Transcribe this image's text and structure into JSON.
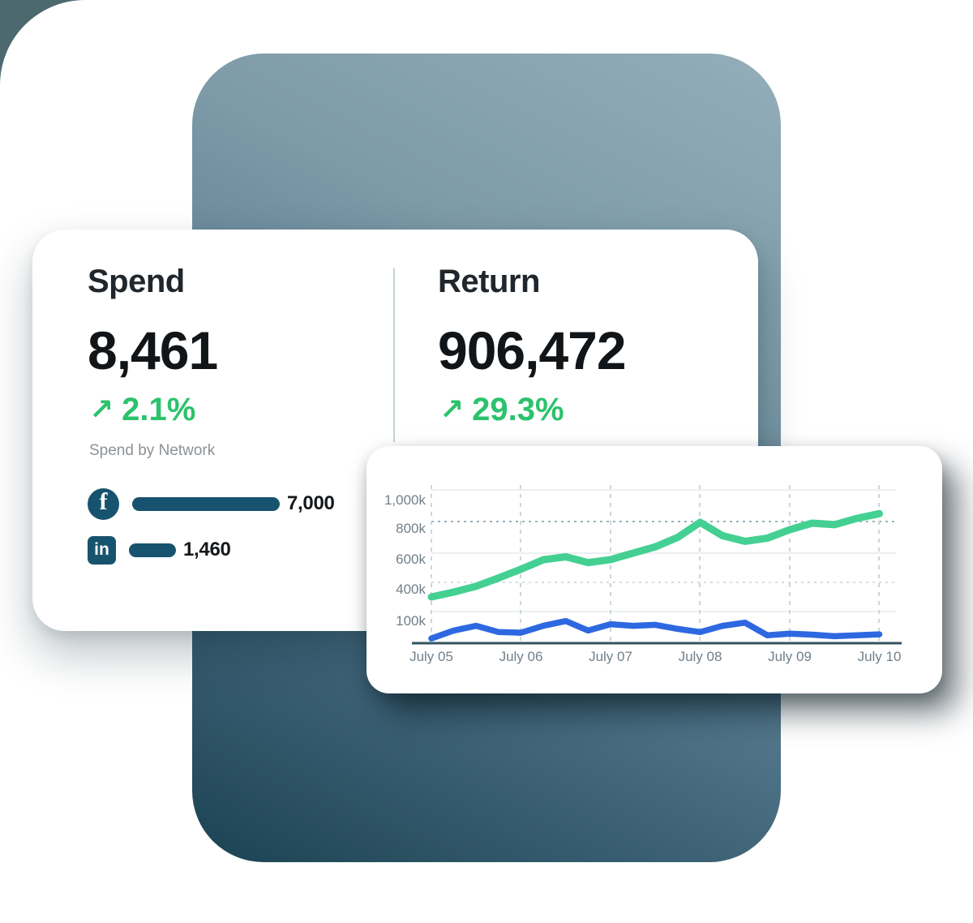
{
  "colors": {
    "corner_wedge": "#4c6970",
    "panel_gradient_top": "#93aeba",
    "panel_gradient_bottom": "#1b4253",
    "accent_green": "#2cc26c",
    "line_green": "#44d093",
    "line_blue": "#2d68e0",
    "network_bar": "#17536e",
    "axis_line": "#33535f"
  },
  "metrics_card": {
    "spend": {
      "title": "Spend",
      "value": "8,461",
      "delta_arrow": "↗",
      "delta": "2.1%",
      "subtitle": "Spend by Network",
      "networks": [
        {
          "name": "Facebook",
          "icon": "facebook-icon",
          "icon_glyph": "f",
          "value": "7,000"
        },
        {
          "name": "LinkedIn",
          "icon": "linkedin-icon",
          "icon_glyph": "in",
          "value": "1,460"
        }
      ]
    },
    "return": {
      "title": "Return",
      "value": "906,472",
      "delta_arrow": "↗",
      "delta": "29.3%"
    }
  },
  "chart_data": {
    "type": "line",
    "title": "",
    "xlabel": "",
    "ylabel": "",
    "x_tick_labels": [
      "July 05",
      "July 06",
      "July 07",
      "July 08",
      "July 09",
      "July 10"
    ],
    "y_tick_labels": [
      "1,000k",
      "800k",
      "600k",
      "400k",
      "100k"
    ],
    "y_tick_values_k": [
      1000,
      800,
      600,
      400,
      100
    ],
    "ylim_k": [
      0,
      1050
    ],
    "grid": "horizontal solid/dotted, vertical dashed at day ticks, dotted reference line at 800k",
    "legend_position": "none",
    "x_days": [
      5.0,
      5.25,
      5.5,
      5.75,
      6.0,
      6.25,
      6.5,
      6.75,
      7.0,
      7.25,
      7.5,
      7.75,
      8.0,
      8.25,
      8.5,
      8.75,
      9.0,
      9.25,
      9.5,
      9.75,
      10.0
    ],
    "series": [
      {
        "name": "Return",
        "color": "#44d093",
        "values_k": [
          250,
          300,
          360,
          430,
          490,
          555,
          575,
          535,
          556,
          600,
          640,
          700,
          795,
          710,
          675,
          695,
          748,
          790,
          780,
          820,
          850
        ]
      },
      {
        "name": "Spend",
        "color": "#2d68e0",
        "values_k": [
          15,
          40,
          55,
          35,
          33,
          55,
          70,
          40,
          60,
          55,
          58,
          45,
          35,
          55,
          65,
          25,
          30,
          27,
          22,
          25,
          28
        ]
      }
    ]
  }
}
